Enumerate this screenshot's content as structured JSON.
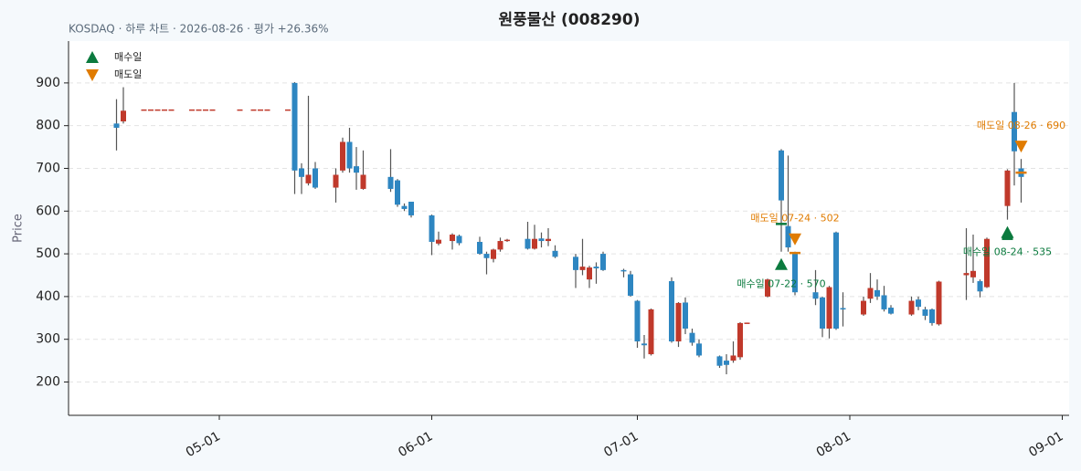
{
  "chart_data": {
    "type": "candlestick",
    "title": "원풍물산 (008290)",
    "subtitle": "KOSDAQ · 하루 차트 · 2026-08-26 · 평가 +26.36%",
    "y_label": "Price",
    "up_color": "#c0392b",
    "down_color": "#2e86c1",
    "wick_color": "#555555",
    "grid": true,
    "legend_position": "upper left",
    "x": [
      "2026-04-16",
      "2026-04-17",
      "2026-04-20",
      "2026-04-21",
      "2026-04-22",
      "2026-04-23",
      "2026-04-24",
      "2026-04-27",
      "2026-04-28",
      "2026-04-29",
      "2026-04-30",
      "2026-05-04",
      "2026-05-06",
      "2026-05-07",
      "2026-05-08",
      "2026-05-11",
      "2026-05-12",
      "2026-05-13",
      "2026-05-14",
      "2026-05-15",
      "2026-05-18",
      "2026-05-19",
      "2026-05-20",
      "2026-05-21",
      "2026-05-22",
      "2026-05-26",
      "2026-05-27",
      "2026-05-28",
      "2026-05-29",
      "2026-06-01",
      "2026-06-02",
      "2026-06-04",
      "2026-06-05",
      "2026-06-08",
      "2026-06-09",
      "2026-06-10",
      "2026-06-11",
      "2026-06-12",
      "2026-06-15",
      "2026-06-16",
      "2026-06-17",
      "2026-06-18",
      "2026-06-19",
      "2026-06-22",
      "2026-06-23",
      "2026-06-24",
      "2026-06-25",
      "2026-06-26",
      "2026-06-29",
      "2026-06-30",
      "2026-07-01",
      "2026-07-02",
      "2026-07-03",
      "2026-07-06",
      "2026-07-07",
      "2026-07-08",
      "2026-07-09",
      "2026-07-10",
      "2026-07-13",
      "2026-07-14",
      "2026-07-15",
      "2026-07-16",
      "2026-07-17",
      "2026-07-20",
      "2026-07-22",
      "2026-07-23",
      "2026-07-24",
      "2026-07-27",
      "2026-07-28",
      "2026-07-29",
      "2026-07-30",
      "2026-07-31",
      "2026-08-03",
      "2026-08-04",
      "2026-08-05",
      "2026-08-06",
      "2026-08-07",
      "2026-08-10",
      "2026-08-11",
      "2026-08-12",
      "2026-08-13",
      "2026-08-14",
      "2026-08-18",
      "2026-08-19",
      "2026-08-20",
      "2026-08-21",
      "2026-08-24",
      "2026-08-25",
      "2026-08-26"
    ],
    "open": [
      805,
      810,
      838,
      838,
      838,
      838,
      838,
      838,
      838,
      838,
      838,
      838,
      838,
      838,
      838,
      838,
      900,
      700,
      665,
      700,
      655,
      695,
      762,
      705,
      652,
      680,
      672,
      612,
      622,
      590,
      524,
      530,
      542,
      528,
      500,
      488,
      510,
      530,
      535,
      512,
      536,
      530,
      507,
      493,
      462,
      440,
      470,
      500,
      462,
      452,
      390,
      290,
      265,
      436,
      295,
      386,
      315,
      290,
      260,
      250,
      250,
      258,
      338,
      400,
      742,
      565,
      500,
      410,
      398,
      325,
      550,
      373,
      358,
      395,
      415,
      403,
      374,
      358,
      393,
      370,
      370,
      335,
      450,
      445,
      436,
      422,
      612,
      832,
      700
    ],
    "high": [
      862,
      890,
      838,
      838,
      838,
      838,
      838,
      838,
      838,
      838,
      838,
      838,
      838,
      838,
      838,
      838,
      902,
      712,
      870,
      715,
      700,
      772,
      795,
      750,
      742,
      745,
      675,
      618,
      622,
      592,
      552,
      548,
      545,
      540,
      505,
      512,
      538,
      535,
      575,
      568,
      550,
      560,
      520,
      500,
      535,
      472,
      480,
      505,
      465,
      460,
      392,
      310,
      372,
      445,
      387,
      398,
      325,
      300,
      262,
      265,
      295,
      340,
      339,
      442,
      745,
      730,
      505,
      462,
      400,
      425,
      552,
      410,
      400,
      455,
      440,
      425,
      380,
      400,
      400,
      376,
      372,
      437,
      560,
      545,
      440,
      538,
      698,
      900,
      722
    ],
    "low": [
      742,
      805,
      838,
      838,
      838,
      838,
      838,
      838,
      838,
      838,
      838,
      838,
      838,
      838,
      838,
      838,
      640,
      640,
      660,
      652,
      620,
      690,
      690,
      650,
      650,
      645,
      610,
      600,
      585,
      497,
      520,
      510,
      520,
      498,
      452,
      480,
      505,
      528,
      510,
      510,
      515,
      518,
      490,
      420,
      450,
      420,
      430,
      460,
      445,
      400,
      280,
      255,
      262,
      292,
      282,
      312,
      285,
      258,
      233,
      218,
      245,
      252,
      337,
      398,
      505,
      505,
      403,
      380,
      305,
      302,
      322,
      330,
      355,
      385,
      392,
      365,
      358,
      355,
      368,
      345,
      332,
      332,
      392,
      432,
      398,
      420,
      580,
      660,
      620
    ],
    "close": [
      795,
      835,
      838,
      838,
      838,
      838,
      838,
      838,
      838,
      838,
      838,
      838,
      838,
      838,
      838,
      838,
      695,
      680,
      685,
      655,
      685,
      762,
      700,
      690,
      685,
      652,
      615,
      605,
      590,
      528,
      533,
      545,
      525,
      500,
      490,
      510,
      530,
      533,
      512,
      535,
      530,
      535,
      493,
      462,
      470,
      468,
      466,
      462,
      460,
      402,
      295,
      286,
      370,
      295,
      385,
      325,
      292,
      262,
      238,
      240,
      262,
      338,
      339,
      440,
      625,
      515,
      410,
      395,
      325,
      422,
      325,
      372,
      390,
      420,
      400,
      370,
      360,
      390,
      376,
      355,
      338,
      435,
      455,
      460,
      412,
      535,
      695,
      740,
      680
    ],
    "xlim": [
      "2026-04-09",
      "2026-09-02"
    ],
    "xticks": [
      {
        "value": "2026-05-01",
        "label": "05-01"
      },
      {
        "value": "2026-06-01",
        "label": "06-01"
      },
      {
        "value": "2026-07-01",
        "label": "07-01"
      },
      {
        "value": "2026-08-01",
        "label": "08-01"
      },
      {
        "value": "2026-09-01",
        "label": "09-01"
      }
    ],
    "ylim": [
      122,
      998
    ],
    "yticks": [
      200,
      300,
      400,
      500,
      600,
      700,
      800,
      900
    ],
    "legend": [
      {
        "name": "매수일",
        "kind": "buy",
        "color": "#0b7a3e"
      },
      {
        "name": "매도일",
        "kind": "sell",
        "color": "#e07b00"
      }
    ],
    "trades": [
      {
        "kind": "buy",
        "date": "2026-07-22",
        "price": 570,
        "label": "매수일 07-22 · 570"
      },
      {
        "kind": "sell",
        "date": "2026-07-24",
        "price": 502,
        "label": "매도일 07-24 · 502"
      },
      {
        "kind": "buy",
        "date": "2026-08-24",
        "price": 535,
        "label": "매수일 08-24 · 535"
      },
      {
        "kind": "sell",
        "date": "2026-08-26",
        "price": 690,
        "label": "매도일 08-26 · 690"
      }
    ]
  }
}
